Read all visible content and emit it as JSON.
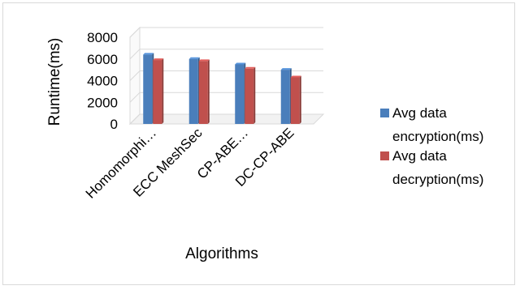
{
  "chart_data": {
    "type": "bar",
    "style": "3d-clustered-column",
    "categories": [
      "Homomorphi…",
      "ECC MeshSec",
      "CP-ABE…",
      "DC-CP-ABE"
    ],
    "series": [
      {
        "name": "Avg data encryption(ms)",
        "name_lines": [
          "Avg data",
          "encryption(ms)"
        ],
        "color": "#4a7ebb",
        "values": [
          6400,
          6000,
          5500,
          5000
        ]
      },
      {
        "name": "Avg data decryption(ms)",
        "name_lines": [
          "Avg data",
          "decryption(ms)"
        ],
        "color": "#c0504d",
        "values": [
          5900,
          5800,
          5100,
          4300
        ]
      }
    ],
    "title": "",
    "xlabel": "Algorithms",
    "ylabel": "Runtime(ms)",
    "ylim": [
      0,
      8000
    ],
    "yticks": [
      0,
      2000,
      4000,
      6000,
      8000
    ],
    "grid": true,
    "legend_position": "right"
  }
}
